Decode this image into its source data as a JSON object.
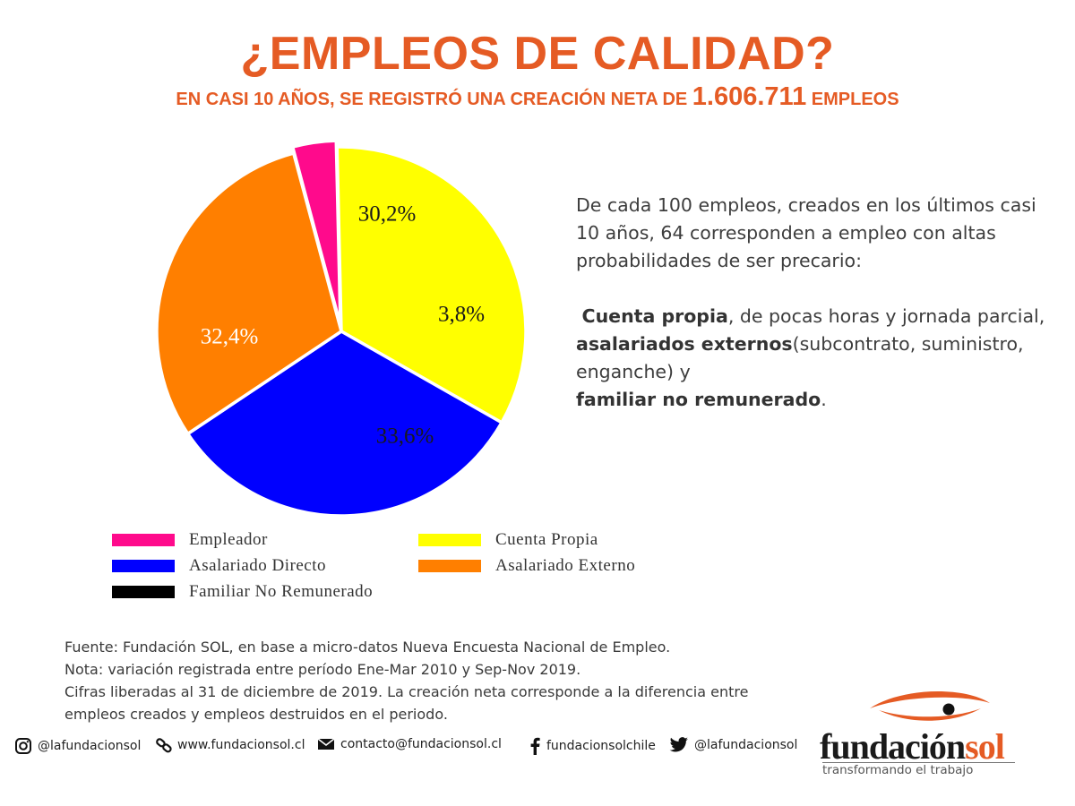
{
  "header": {
    "title": "¿EMPLEOS DE CALIDAD?",
    "subtitle_prefix": "EN CASI 10 AÑOS, SE REGISTRÓ UNA CREACIÓN NETA DE",
    "subtitle_number": "1.606.711",
    "subtitle_suffix": "EMPLEOS"
  },
  "chart_data": {
    "type": "pie",
    "title": "",
    "slices": [
      {
        "name": "Empleador",
        "value": 3.8,
        "label": "3,8%",
        "color": "#ff0a8c"
      },
      {
        "name": "Cuenta Propia",
        "value": 33.6,
        "label": "33,6%",
        "color": "#ffff00"
      },
      {
        "name": "Asalariado Directo",
        "value": 32.4,
        "label": "32,4%",
        "color": "#0000ff"
      },
      {
        "name": "Asalariado Externo",
        "value": 30.2,
        "label": "30,2%",
        "color": "#ff7f00"
      },
      {
        "name": "Familiar No Remunerado",
        "value": 0,
        "label": "",
        "color": "#000000"
      }
    ],
    "legend_position": "bottom",
    "legend": [
      {
        "name": "Empleador",
        "color": "#ff0a8c"
      },
      {
        "name": "Cuenta Propia",
        "color": "#ffff00"
      },
      {
        "name": "Asalariado Directo",
        "color": "#0000ff"
      },
      {
        "name": "Asalariado Externo",
        "color": "#ff7f00"
      },
      {
        "name": "Familiar No Remunerado",
        "color": "#000000"
      }
    ]
  },
  "side_text": {
    "intro": "De cada 100 empleos, creados en los últimos casi 10 años, 64 corresponden a  empleo con altas probabilidades de ser precario:",
    "item1_bold": "Cuenta propia",
    "item1_rest": ", de pocas horas y jornada parcial,",
    "item2_bold": "asalariados externos",
    "item2_rest": "(subcontrato, suministro, enganche) y",
    "item3_bold": "familiar no remunerado",
    "item3_rest": "."
  },
  "notes": {
    "line1": "Fuente: Fundación SOL, en base a micro-datos Nueva Encuesta Nacional de Empleo.",
    "line2": "Nota: variación registrada entre período Ene-Mar 2010 y Sep-Nov 2019.",
    "line3": "Cifras liberadas al 31 de diciembre de 2019. La creación neta corresponde a la diferencia entre empleos creados y empleos destruidos en el periodo."
  },
  "footer": {
    "instagram": "@lafundacionsol",
    "website": "www.fundacionsol.cl",
    "email": "contacto@fundacionsol.cl",
    "facebook": "fundacionsolchile",
    "twitter": "@lafundacionsol"
  },
  "logo": {
    "name_part1": "fundación",
    "name_part2": "sol",
    "tagline": "transformando el trabajo"
  },
  "colors": {
    "accent": "#e55b24"
  }
}
